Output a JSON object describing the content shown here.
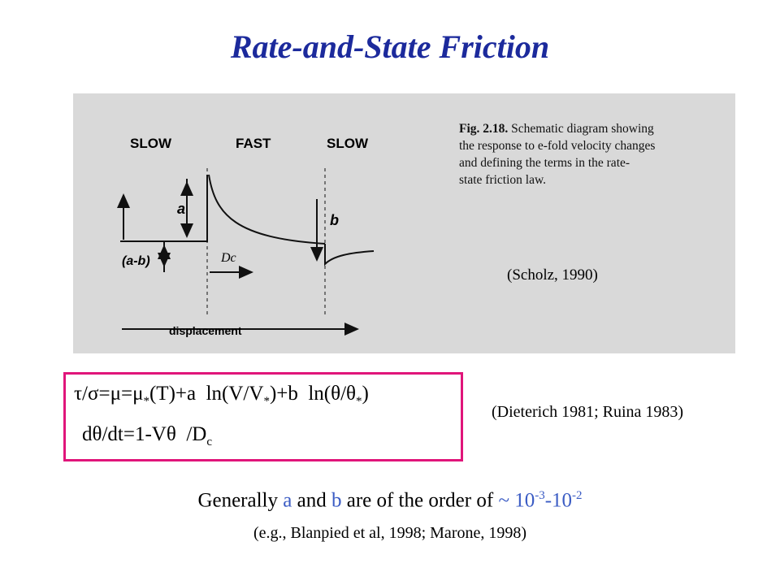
{
  "title": "Rate-and-State Friction",
  "figure": {
    "labels": {
      "slow1": "SLOW",
      "fast": "FAST",
      "slow2": "SLOW",
      "a": "a",
      "b": "b",
      "amb": "(a-b)",
      "dc": "Dc",
      "xaxis": "displacement"
    },
    "caption": {
      "lead": "Fig. 2.18.",
      "lines": [
        " Schematic diagram showing",
        "the response to e-fold velocity changes",
        "and defining the terms in the rate-",
        "state friction law."
      ]
    },
    "source": "(Scholz, 1990)"
  },
  "equations": {
    "line1": [
      "τ/σ=μ=μ",
      "*",
      "(T)+a  ln(V/V",
      "*",
      ")+b  ln(θ/θ",
      "*",
      ")"
    ],
    "line2": [
      "dθ/dt=1-Vθ  /D",
      "c"
    ]
  },
  "citation": "(Dieterich 1981; Ruina 1983)",
  "note": {
    "parts": [
      "Generally ",
      "a",
      " and ",
      "b",
      " are of the order of ",
      "~ 10",
      "-3",
      "-10",
      "-2"
    ],
    "refs": "(e.g., Blanpied et al, 1998; Marone, 1998)"
  }
}
